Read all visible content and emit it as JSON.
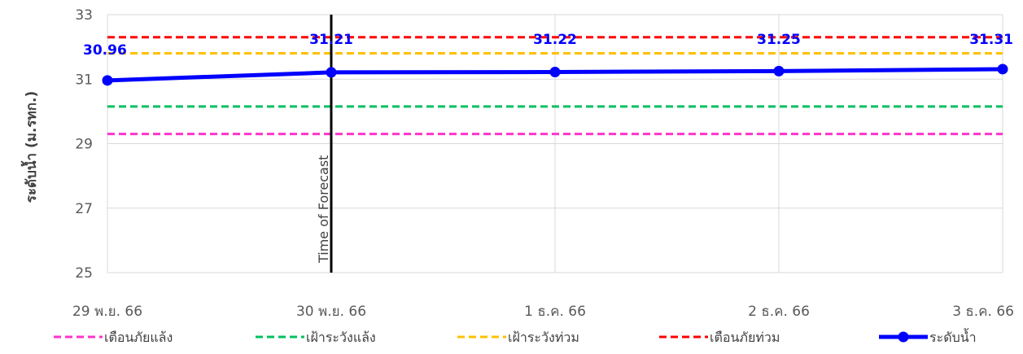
{
  "chart_data": {
    "type": "line",
    "title": "",
    "xlabel": "",
    "ylabel": "ระดับน้ำ (ม.รทก.)",
    "categories": [
      "29 พ.ย. 66",
      "30 พ.ย. 66",
      "1 ธ.ค. 66",
      "2 ธ.ค. 66",
      "3 ธ.ค. 66"
    ],
    "ylim": [
      25,
      33
    ],
    "yticks": [
      "25",
      "27",
      "29",
      "31",
      "33"
    ],
    "grid": true,
    "legend_position": "bottom",
    "series": [
      {
        "name": "เตือนภัยแล้ง",
        "style": "dashed",
        "color": "#ff33cc",
        "values": [
          29.3,
          29.3,
          29.3,
          29.3,
          29.3
        ]
      },
      {
        "name": "เฝ้าระวังแล้ง",
        "style": "dashed",
        "color": "#00c060",
        "values": [
          30.15,
          30.15,
          30.15,
          30.15,
          30.15
        ]
      },
      {
        "name": "เฝ้าระวังท่วม",
        "style": "dashed",
        "color": "#ffc000",
        "values": [
          31.8,
          31.8,
          31.8,
          31.8,
          31.8
        ]
      },
      {
        "name": "เตือนภัยท่วม",
        "style": "dashed",
        "color": "#ff0000",
        "values": [
          32.3,
          32.3,
          32.3,
          32.3,
          32.3
        ]
      },
      {
        "name": "ระดับน้ำ",
        "style": "solid-markers",
        "color": "#0000ff",
        "values": [
          30.96,
          31.21,
          31.22,
          31.25,
          31.31
        ],
        "labels": [
          "30.96",
          "31.21",
          "31.22",
          "31.25",
          "31.31"
        ]
      }
    ],
    "annotation": {
      "text": "Time of Forecast",
      "category": "30 พ.ย. 66"
    }
  }
}
